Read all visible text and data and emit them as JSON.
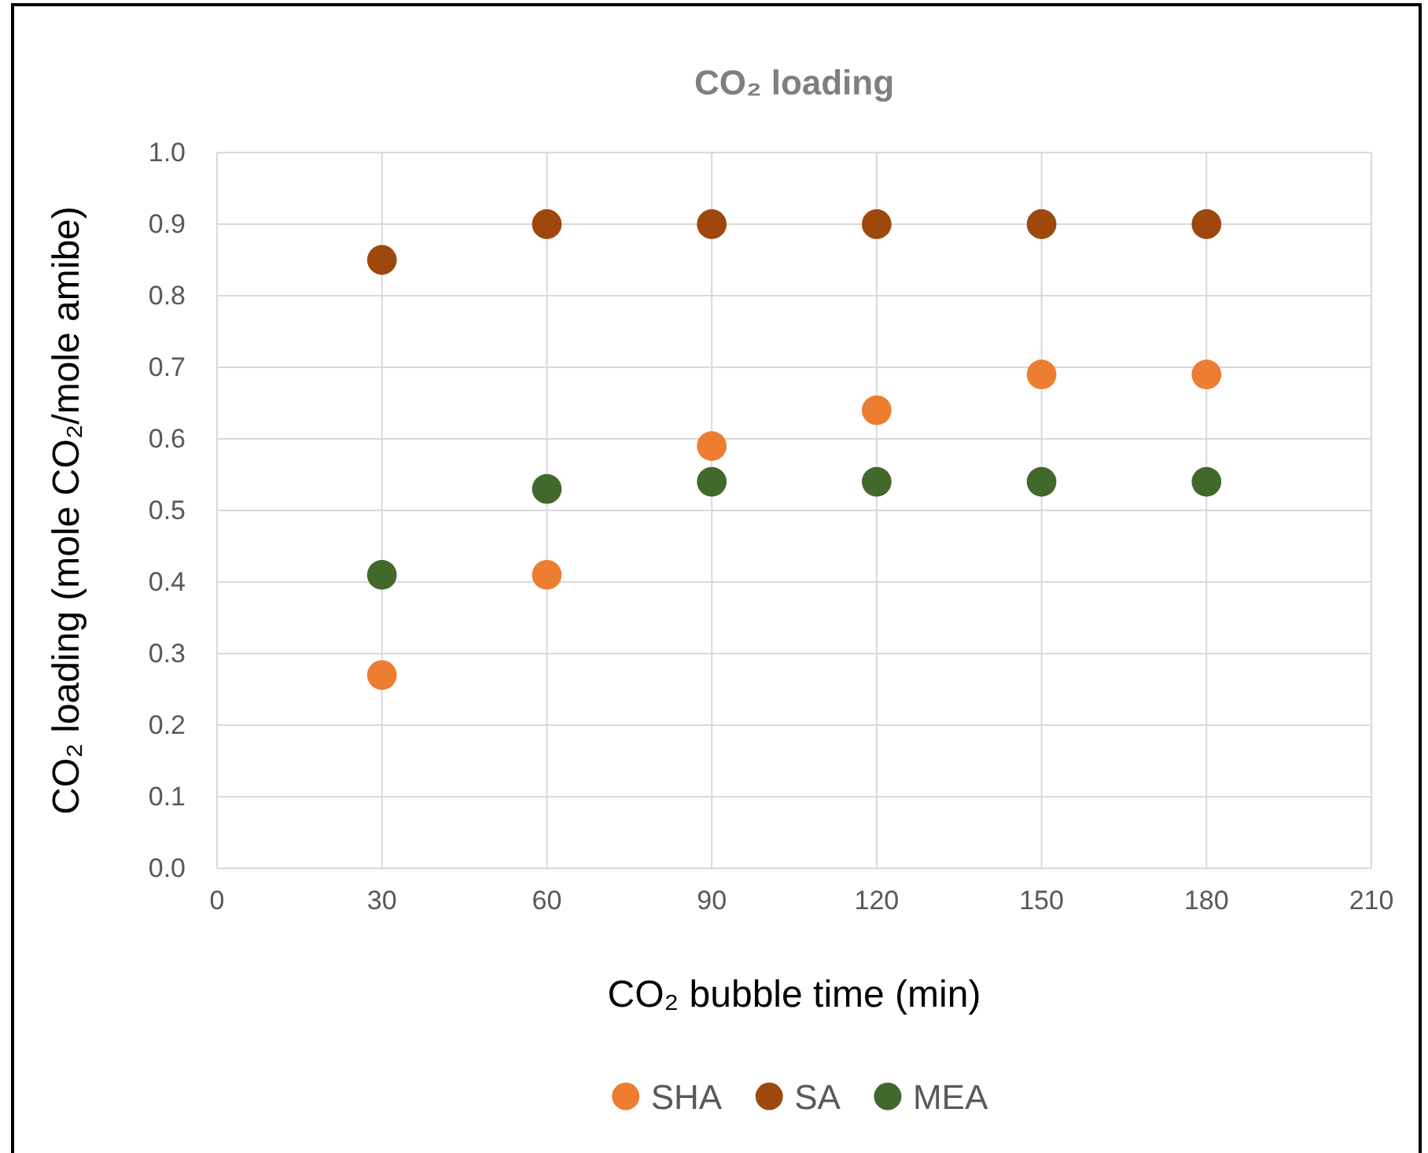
{
  "chart_data": {
    "type": "scatter",
    "title": "CO₂ loading",
    "xlabel": "CO₂ bubble time (min)",
    "ylabel": "CO₂ loading (mole CO₂/mole amibe)",
    "x": [
      30,
      60,
      90,
      120,
      150,
      180
    ],
    "series": [
      {
        "name": "SHA",
        "color": "#ed7d31",
        "values": [
          0.27,
          0.41,
          0.59,
          0.64,
          0.69,
          0.69
        ]
      },
      {
        "name": "SA",
        "color": "#9e480e",
        "values": [
          0.85,
          0.9,
          0.9,
          0.9,
          0.9,
          0.9
        ]
      },
      {
        "name": "MEA",
        "color": "#43682b",
        "values": [
          0.41,
          0.53,
          0.54,
          0.54,
          0.54,
          0.54
        ]
      }
    ],
    "xlim": [
      0,
      210
    ],
    "xticks": [
      0,
      30,
      60,
      90,
      120,
      150,
      180,
      210
    ],
    "ylim": [
      0,
      1
    ],
    "yticks": [
      {
        "value": 0,
        "label": "0.0"
      },
      0.1,
      0.2,
      0.3,
      0.4,
      0.5,
      0.6,
      0.7,
      0.8,
      0.9,
      {
        "value": 1,
        "label": "1.0"
      }
    ],
    "grid": true,
    "legend": "bottom",
    "marker": "circle"
  }
}
